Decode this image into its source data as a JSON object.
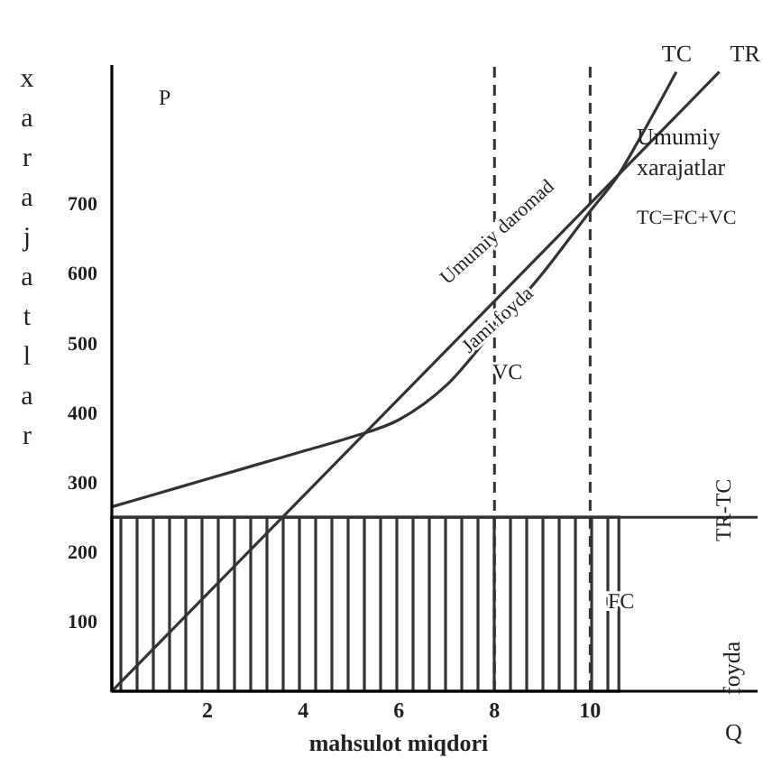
{
  "chart_data": {
    "type": "line",
    "xlabel": "mahsulot miqdori",
    "ylabel": "xarajatlar",
    "xlim": [
      0,
      13.5
    ],
    "ylim": [
      0,
      900
    ],
    "xticks": [
      2,
      4,
      6,
      8,
      10
    ],
    "yticks": [
      100,
      200,
      300,
      400,
      500,
      600,
      700
    ],
    "grid": false,
    "marker": "none",
    "series": [
      {
        "type": "area",
        "color": "#333333",
        "x": [
          0,
          10.6
        ],
        "values": [
          250,
          250
        ]
      },
      {
        "name": "TC",
        "color": "#333333",
        "x": [
          0,
          1,
          2,
          3,
          4,
          5,
          6,
          7,
          8,
          9,
          10,
          10.6,
          11,
          11.8
        ],
        "values": [
          265,
          285,
          305,
          325,
          345,
          365,
          390,
          440,
          520,
          600,
          690,
          743,
          790,
          890
        ]
      },
      {
        "name": "TR",
        "color": "#333333",
        "x": [
          0,
          12.7
        ],
        "values": [
          0,
          890
        ]
      }
    ],
    "ref_lines": [
      {
        "axis": "x",
        "value": 8,
        "line_style": "dashed",
        "color": "#333333"
      },
      {
        "axis": "x",
        "value": 10,
        "line_style": "dashed",
        "color": "#333333"
      },
      {
        "axis": "y",
        "value": 250,
        "color": "#333333"
      }
    ],
    "annotations": [
      "P",
      "Q",
      "Umumiy xarajatlar",
      "TC=FC+VC",
      "TR-TC",
      "foyda",
      "VC",
      "FC",
      "Umumiy daromad",
      "Jami foyda"
    ]
  }
}
